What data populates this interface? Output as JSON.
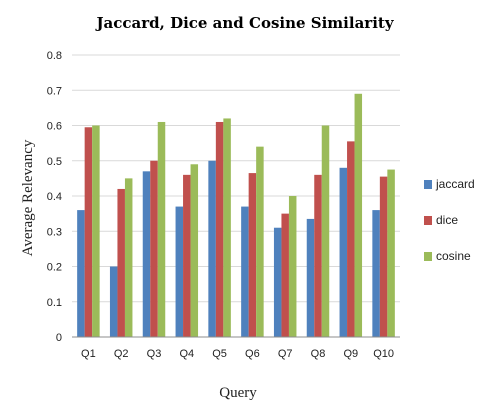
{
  "chart_data": {
    "type": "bar",
    "title": "Jaccard, Dice and Cosine Similarity",
    "xlabel": "Query",
    "ylabel": "Average Relevancy",
    "categories": [
      "Q1",
      "Q2",
      "Q3",
      "Q4",
      "Q5",
      "Q6",
      "Q7",
      "Q8",
      "Q9",
      "Q10"
    ],
    "series": [
      {
        "name": "jaccard",
        "color": "#4f81bd",
        "values": [
          0.36,
          0.2,
          0.47,
          0.37,
          0.5,
          0.37,
          0.31,
          0.335,
          0.48,
          0.36
        ]
      },
      {
        "name": "dice",
        "color": "#c0504d",
        "values": [
          0.595,
          0.42,
          0.5,
          0.46,
          0.61,
          0.465,
          0.35,
          0.46,
          0.555,
          0.455
        ]
      },
      {
        "name": "cosine",
        "color": "#9bbb59",
        "values": [
          0.6,
          0.45,
          0.61,
          0.49,
          0.62,
          0.54,
          0.4,
          0.6,
          0.69,
          0.475
        ]
      }
    ],
    "ylim": [
      0,
      0.8
    ],
    "yticks": [
      "0",
      "0.1",
      "0.2",
      "0.3",
      "0.4",
      "0.5",
      "0.6",
      "0.7",
      "0.8"
    ],
    "grid": true,
    "legend_position": "right"
  }
}
